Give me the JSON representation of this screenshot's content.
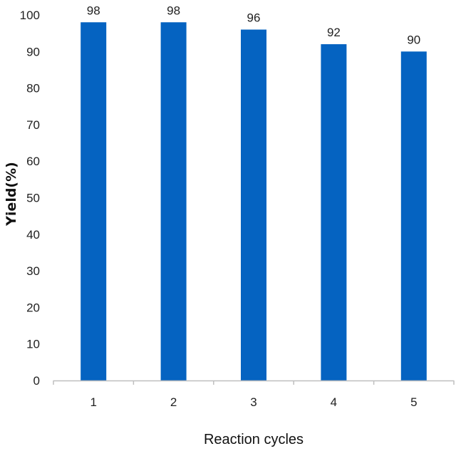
{
  "chart_data": {
    "type": "bar",
    "categories": [
      "1",
      "2",
      "3",
      "4",
      "5"
    ],
    "values": [
      98,
      98,
      96,
      92,
      90
    ],
    "data_labels": [
      "98",
      "98",
      "96",
      "92",
      "90"
    ],
    "title": "",
    "xlabel": "Reaction cycles",
    "ylabel": "Yield(%)",
    "ylim": [
      0,
      100
    ],
    "yticks": [
      0,
      10,
      20,
      30,
      40,
      50,
      60,
      70,
      80,
      90,
      100
    ],
    "grid": false,
    "bar_color": "#0563C1",
    "axis_color": "#bfbfbf"
  }
}
